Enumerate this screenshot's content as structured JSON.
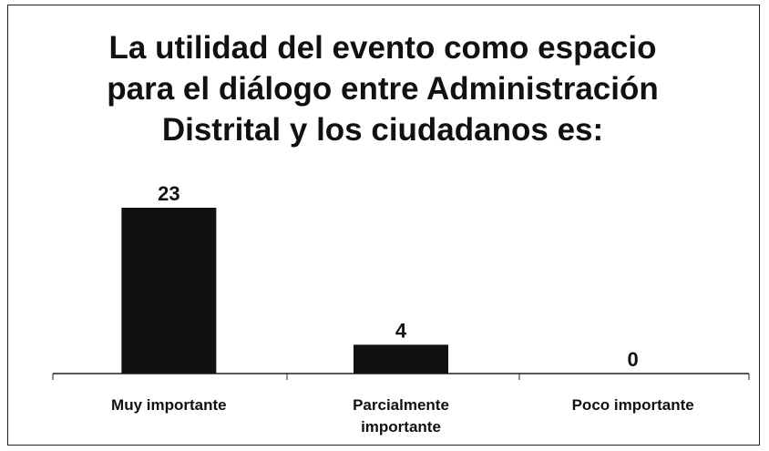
{
  "chart_data": {
    "type": "bar",
    "title": "La utilidad del evento como espacio para el diálogo entre Administración Distrital y los ciudadanos es:",
    "categories": [
      "Muy importante",
      "Parcialmente importante",
      "Poco importante"
    ],
    "values": [
      23,
      4,
      0
    ],
    "color": "#111111"
  }
}
